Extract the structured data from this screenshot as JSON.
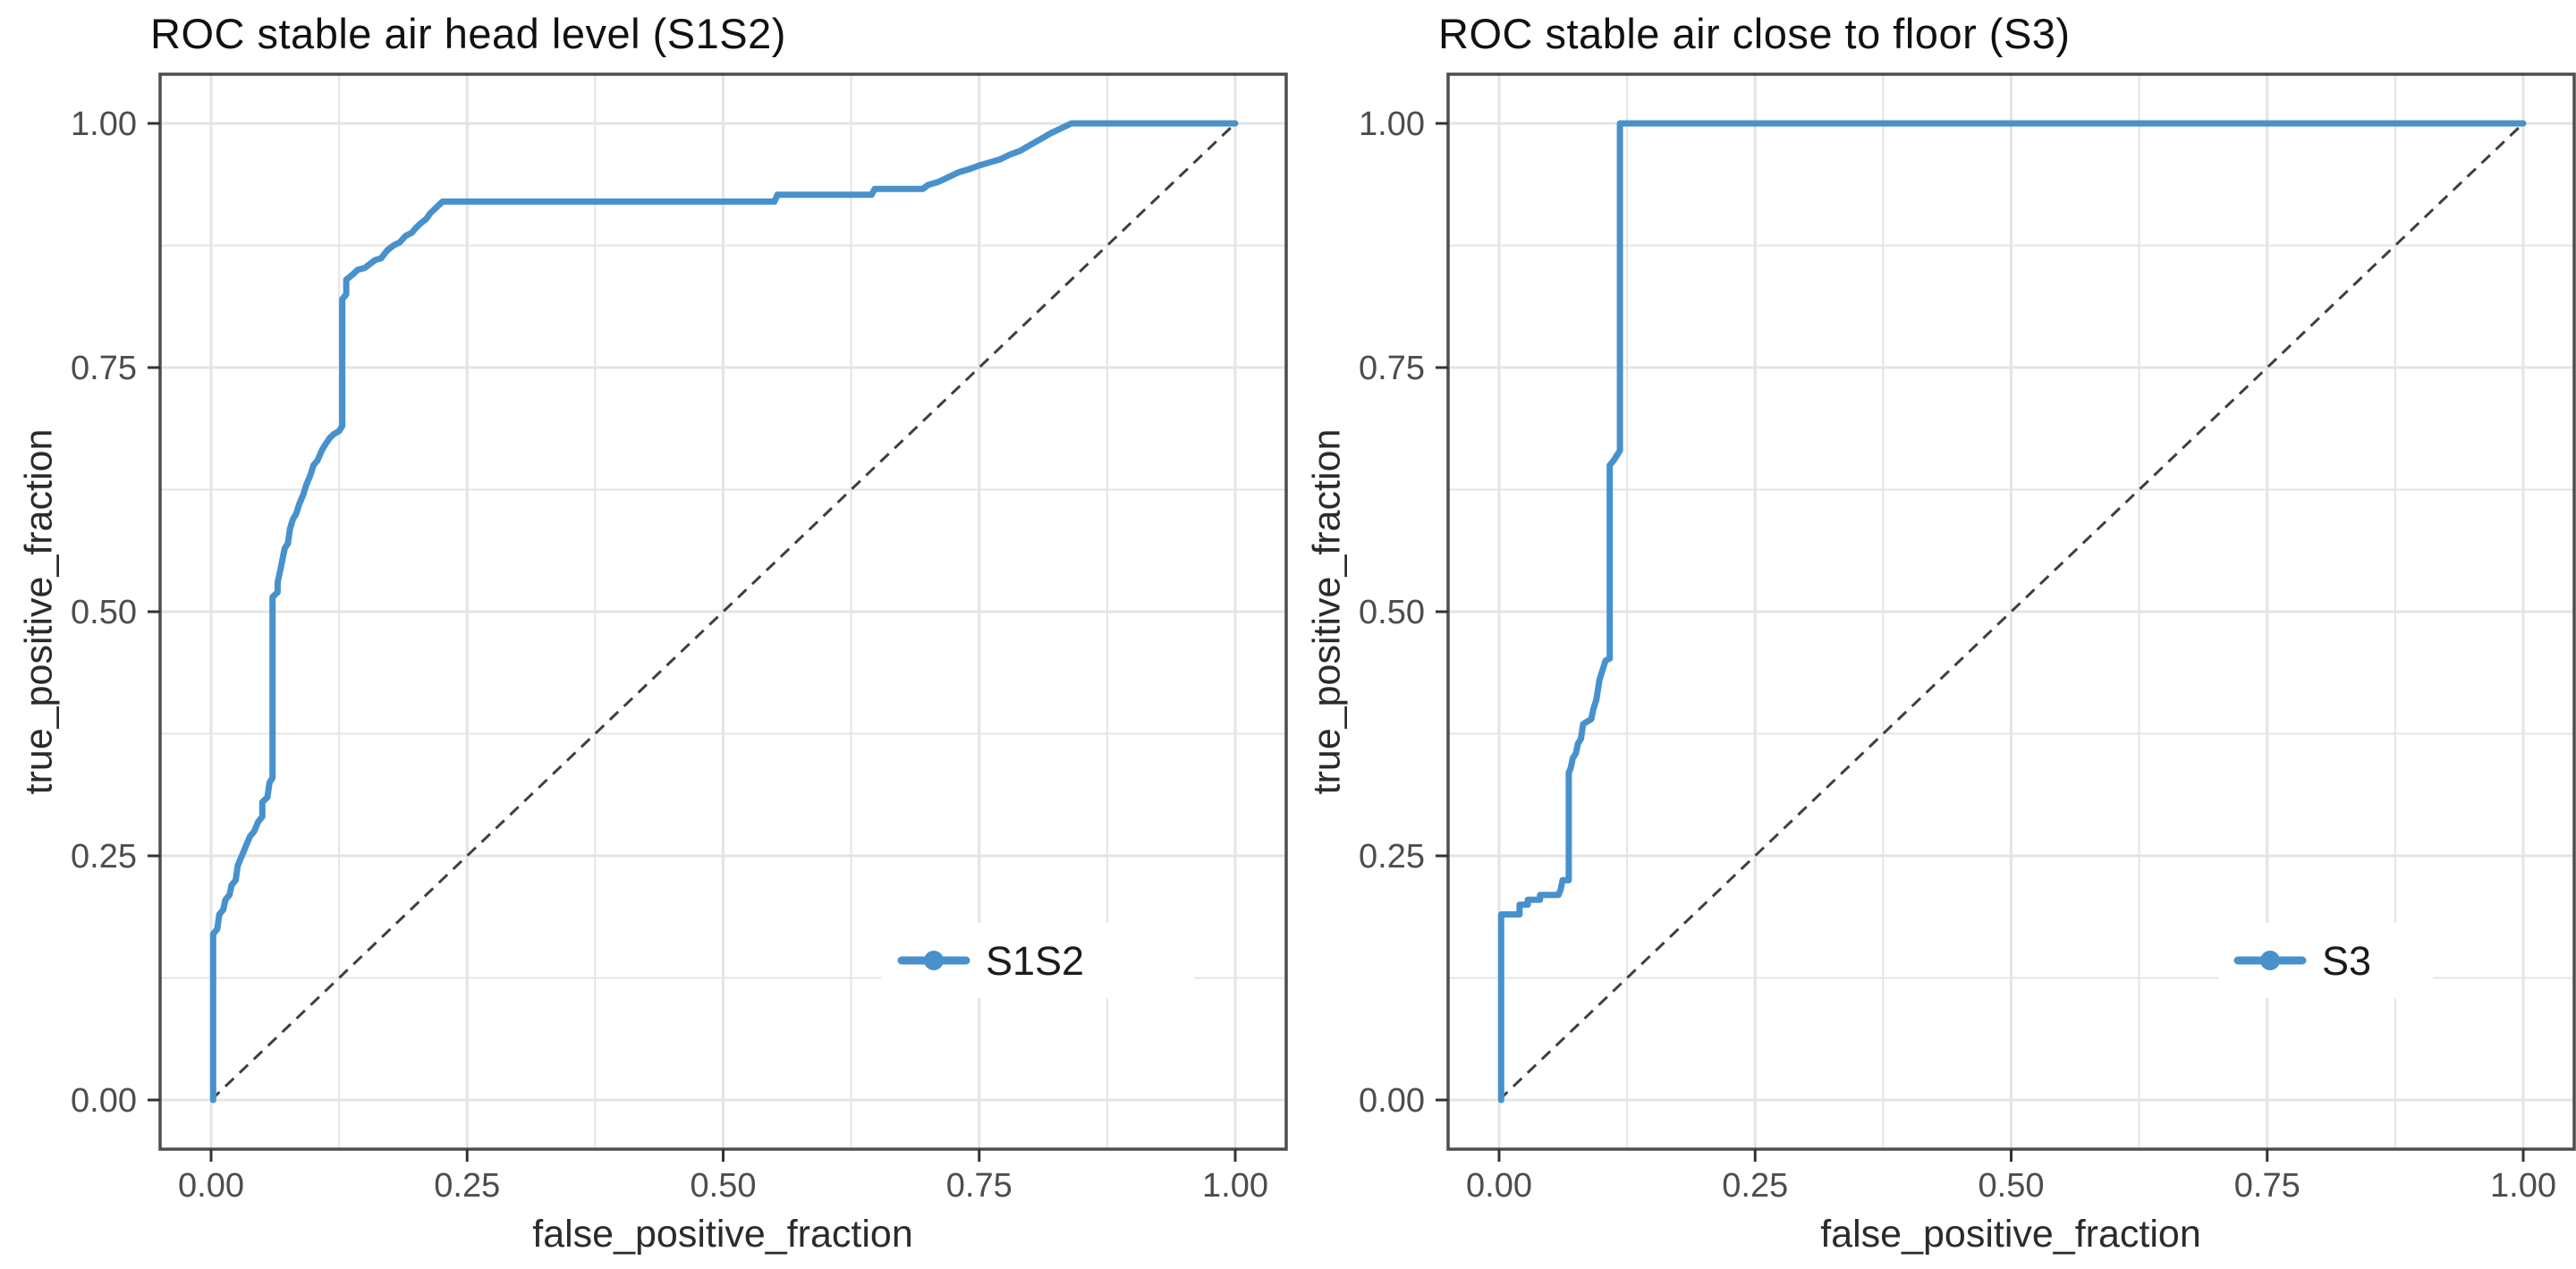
{
  "figure": {
    "kind": "side-by-side ROC curves",
    "background": "#ffffff",
    "panel_count": 2
  },
  "chart_data": [
    {
      "type": "line",
      "title": "ROC stable air head level (S1S2)",
      "xlabel": "false_positive_fraction",
      "ylabel": "true_positive_fraction",
      "xticks": [
        "0.00",
        "0.25",
        "0.50",
        "0.75",
        "1.00"
      ],
      "yticks": [
        "0.00",
        "0.25",
        "0.50",
        "0.75",
        "1.00"
      ],
      "xlim": [
        -0.05,
        1.05
      ],
      "ylim": [
        -0.05,
        1.05
      ],
      "grid": {
        "major": 0.25,
        "minor": 0.125,
        "color": "#E4E4E4",
        "on": true
      },
      "reference_line": {
        "type": "diagonal y=x",
        "style": "dashed",
        "color": "#3F3F3F"
      },
      "legend": {
        "label": "S1S2",
        "position": "inside-bottom-right",
        "background": "#ffffff"
      },
      "colors": {
        "curve": "#4791CD",
        "panel_border": "#4D4D4D",
        "tick_text": "#4D4D4D",
        "title_text": "#111111"
      },
      "series": [
        {
          "name": "S1S2",
          "color": "#4791CD",
          "points": [
            [
              0.002,
              0
            ],
            [
              0.002,
              0.17
            ],
            [
              0.006,
              0.175
            ],
            [
              0.008,
              0.19
            ],
            [
              0.012,
              0.195
            ],
            [
              0.014,
              0.205
            ],
            [
              0.018,
              0.21
            ],
            [
              0.02,
              0.22
            ],
            [
              0.024,
              0.225
            ],
            [
              0.026,
              0.24
            ],
            [
              0.03,
              0.25
            ],
            [
              0.034,
              0.26
            ],
            [
              0.038,
              0.27
            ],
            [
              0.042,
              0.275
            ],
            [
              0.046,
              0.285
            ],
            [
              0.05,
              0.29
            ],
            [
              0.05,
              0.305
            ],
            [
              0.055,
              0.31
            ],
            [
              0.057,
              0.325
            ],
            [
              0.06,
              0.33
            ],
            [
              0.06,
              0.515
            ],
            [
              0.065,
              0.52
            ],
            [
              0.065,
              0.53
            ],
            [
              0.068,
              0.545
            ],
            [
              0.07,
              0.555
            ],
            [
              0.072,
              0.565
            ],
            [
              0.075,
              0.57
            ],
            [
              0.077,
              0.585
            ],
            [
              0.08,
              0.595
            ],
            [
              0.083,
              0.6
            ],
            [
              0.086,
              0.61
            ],
            [
              0.09,
              0.62
            ],
            [
              0.093,
              0.63
            ],
            [
              0.097,
              0.64
            ],
            [
              0.1,
              0.65
            ],
            [
              0.104,
              0.655
            ],
            [
              0.108,
              0.665
            ],
            [
              0.112,
              0.672
            ],
            [
              0.116,
              0.678
            ],
            [
              0.12,
              0.682
            ],
            [
              0.125,
              0.685
            ],
            [
              0.128,
              0.69
            ],
            [
              0.128,
              0.82
            ],
            [
              0.132,
              0.825
            ],
            [
              0.132,
              0.84
            ],
            [
              0.138,
              0.845
            ],
            [
              0.143,
              0.85
            ],
            [
              0.15,
              0.852
            ],
            [
              0.155,
              0.856
            ],
            [
              0.16,
              0.86
            ],
            [
              0.166,
              0.862
            ],
            [
              0.172,
              0.87
            ],
            [
              0.178,
              0.875
            ],
            [
              0.184,
              0.878
            ],
            [
              0.19,
              0.885
            ],
            [
              0.196,
              0.888
            ],
            [
              0.2,
              0.893
            ],
            [
              0.205,
              0.898
            ],
            [
              0.21,
              0.902
            ],
            [
              0.214,
              0.908
            ],
            [
              0.218,
              0.912
            ],
            [
              0.222,
              0.916
            ],
            [
              0.226,
              0.92
            ],
            [
              0.55,
              0.92
            ],
            [
              0.553,
              0.927
            ],
            [
              0.645,
              0.927
            ],
            [
              0.648,
              0.933
            ],
            [
              0.695,
              0.933
            ],
            [
              0.7,
              0.937
            ],
            [
              0.71,
              0.94
            ],
            [
              0.72,
              0.945
            ],
            [
              0.73,
              0.95
            ],
            [
              0.74,
              0.953
            ],
            [
              0.75,
              0.957
            ],
            [
              0.76,
              0.96
            ],
            [
              0.77,
              0.963
            ],
            [
              0.78,
              0.968
            ],
            [
              0.79,
              0.972
            ],
            [
              0.8,
              0.978
            ],
            [
              0.81,
              0.984
            ],
            [
              0.82,
              0.99
            ],
            [
              0.83,
              0.995
            ],
            [
              0.84,
              1.0
            ],
            [
              1.0,
              1.0
            ]
          ]
        }
      ]
    },
    {
      "type": "line",
      "title": "ROC stable air close to floor (S3)",
      "xlabel": "false_positive_fraction",
      "ylabel": "true_positive_fraction",
      "xticks": [
        "0.00",
        "0.25",
        "0.50",
        "0.75",
        "1.00"
      ],
      "yticks": [
        "0.00",
        "0.25",
        "0.50",
        "0.75",
        "1.00"
      ],
      "xlim": [
        -0.05,
        1.05
      ],
      "ylim": [
        -0.05,
        1.05
      ],
      "grid": {
        "major": 0.25,
        "minor": 0.125,
        "color": "#E4E4E4",
        "on": true
      },
      "reference_line": {
        "type": "diagonal y=x",
        "style": "dashed",
        "color": "#3F3F3F"
      },
      "legend": {
        "label": "S3",
        "position": "inside-bottom-right",
        "background": "#ffffff"
      },
      "colors": {
        "curve": "#4791CD",
        "panel_border": "#4D4D4D",
        "tick_text": "#4D4D4D",
        "title_text": "#111111"
      },
      "series": [
        {
          "name": "S3",
          "color": "#4791CD",
          "points": [
            [
              0.002,
              0
            ],
            [
              0.002,
              0.19
            ],
            [
              0.02,
              0.19
            ],
            [
              0.02,
              0.2
            ],
            [
              0.028,
              0.2
            ],
            [
              0.028,
              0.205
            ],
            [
              0.04,
              0.205
            ],
            [
              0.04,
              0.21
            ],
            [
              0.058,
              0.21
            ],
            [
              0.06,
              0.215
            ],
            [
              0.062,
              0.225
            ],
            [
              0.068,
              0.225
            ],
            [
              0.068,
              0.335
            ],
            [
              0.07,
              0.34
            ],
            [
              0.072,
              0.35
            ],
            [
              0.075,
              0.355
            ],
            [
              0.077,
              0.365
            ],
            [
              0.08,
              0.37
            ],
            [
              0.082,
              0.385
            ],
            [
              0.09,
              0.39
            ],
            [
              0.092,
              0.4
            ],
            [
              0.095,
              0.41
            ],
            [
              0.098,
              0.43
            ],
            [
              0.101,
              0.44
            ],
            [
              0.104,
              0.45
            ],
            [
              0.108,
              0.452
            ],
            [
              0.108,
              0.65
            ],
            [
              0.112,
              0.655
            ],
            [
              0.115,
              0.66
            ],
            [
              0.118,
              0.665
            ],
            [
              0.118,
              1.0
            ],
            [
              1.0,
              1.0
            ]
          ]
        }
      ]
    }
  ]
}
